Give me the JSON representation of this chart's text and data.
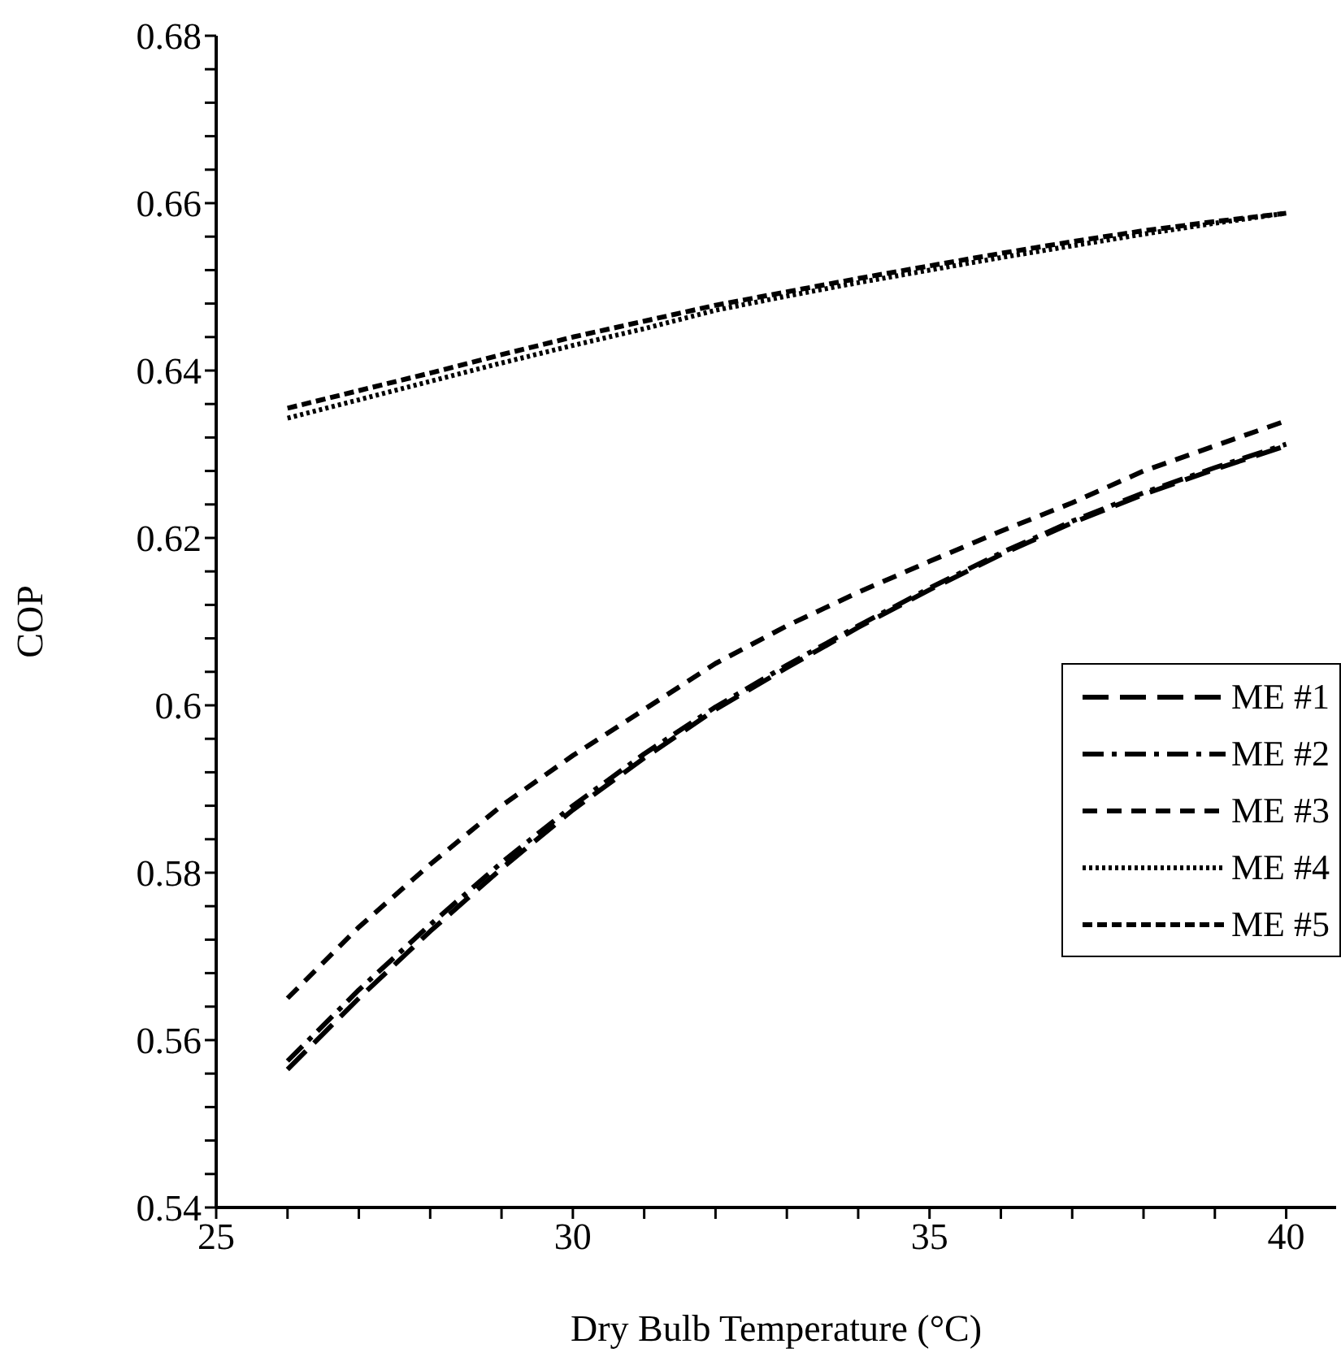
{
  "chart_data": {
    "type": "line",
    "xlabel": "Dry Bulb Temperature (°C)",
    "ylabel": "COP",
    "x": [
      26,
      27,
      28,
      29,
      30,
      31,
      32,
      33,
      34,
      35,
      36,
      37,
      38,
      39,
      40
    ],
    "series": [
      {
        "name": "ME #1",
        "color": "#000000",
        "line_style": "dashed",
        "values": [
          0.5565,
          0.565,
          0.573,
          0.5805,
          0.5875,
          0.5937,
          0.5995,
          0.6045,
          0.6093,
          0.6138,
          0.618,
          0.6218,
          0.6252,
          0.6282,
          0.631
        ]
      },
      {
        "name": "ME #2",
        "color": "#000000",
        "line_style": "dashed",
        "values": [
          0.5575,
          0.566,
          0.5738,
          0.5812,
          0.588,
          0.5942,
          0.5998,
          0.6048,
          0.6095,
          0.614,
          0.6182,
          0.622,
          0.6254,
          0.6284,
          0.6312
        ]
      },
      {
        "name": "ME #3",
        "color": "#000000",
        "line_style": "dashed",
        "values": [
          0.565,
          0.5735,
          0.581,
          0.588,
          0.594,
          0.5995,
          0.605,
          0.6095,
          0.6135,
          0.6172,
          0.6208,
          0.6242,
          0.628,
          0.631,
          0.634
        ]
      },
      {
        "name": "ME #4",
        "color": "#000000",
        "line_style": "dotted",
        "values": [
          0.6343,
          0.6365,
          0.6387,
          0.6409,
          0.643,
          0.645,
          0.6472,
          0.6489,
          0.6505,
          0.652,
          0.6535,
          0.6549,
          0.6563,
          0.6576,
          0.6588
        ]
      },
      {
        "name": "ME #5",
        "color": "#000000",
        "line_style": "dashed",
        "values": [
          0.6355,
          0.6376,
          0.6397,
          0.6419,
          0.644,
          0.6459,
          0.6478,
          0.6494,
          0.651,
          0.6525,
          0.654,
          0.6554,
          0.6567,
          0.6578,
          0.6588
        ]
      }
    ],
    "xlim": [
      25,
      40.7
    ],
    "xticks": [
      25,
      {
        "value": 26,
        "label": null
      },
      {
        "value": 27,
        "label": null
      },
      {
        "value": 28,
        "label": null
      },
      {
        "value": 29,
        "label": null
      },
      30,
      {
        "value": 31,
        "label": null
      },
      {
        "value": 32,
        "label": null
      },
      {
        "value": 33,
        "label": null
      },
      {
        "value": 34,
        "label": null
      },
      35,
      {
        "value": 36,
        "label": null
      },
      {
        "value": 37,
        "label": null
      },
      {
        "value": 38,
        "label": null
      },
      {
        "value": 39,
        "label": null
      },
      40
    ],
    "ylim": [
      0.54,
      0.68
    ],
    "yticks": [
      0.54,
      {
        "value": 0.544,
        "label": null
      },
      {
        "value": 0.548,
        "label": null
      },
      {
        "value": 0.552,
        "label": null
      },
      {
        "value": 0.556,
        "label": null
      },
      0.56,
      {
        "value": 0.564,
        "label": null
      },
      {
        "value": 0.568,
        "label": null
      },
      {
        "value": 0.572,
        "label": null
      },
      {
        "value": 0.576,
        "label": null
      },
      0.58,
      {
        "value": 0.584,
        "label": null
      },
      {
        "value": 0.588,
        "label": null
      },
      {
        "value": 0.592,
        "label": null
      },
      {
        "value": 0.596,
        "label": null
      },
      {
        "value": 0.6,
        "label": "0.6"
      },
      {
        "value": 0.604,
        "label": null
      },
      {
        "value": 0.608,
        "label": null
      },
      {
        "value": 0.612,
        "label": null
      },
      {
        "value": 0.616,
        "label": null
      },
      0.62,
      {
        "value": 0.624,
        "label": null
      },
      {
        "value": 0.628,
        "label": null
      },
      {
        "value": 0.632,
        "label": null
      },
      {
        "value": 0.636,
        "label": null
      },
      0.64,
      {
        "value": 0.644,
        "label": null
      },
      {
        "value": 0.648,
        "label": null
      },
      {
        "value": 0.652,
        "label": null
      },
      {
        "value": 0.656,
        "label": null
      },
      0.66,
      {
        "value": 0.664,
        "label": null
      },
      {
        "value": 0.668,
        "label": null
      },
      {
        "value": 0.672,
        "label": null
      },
      {
        "value": 0.676,
        "label": null
      },
      0.68
    ],
    "grid": false,
    "legend": "right",
    "marker": "none"
  }
}
